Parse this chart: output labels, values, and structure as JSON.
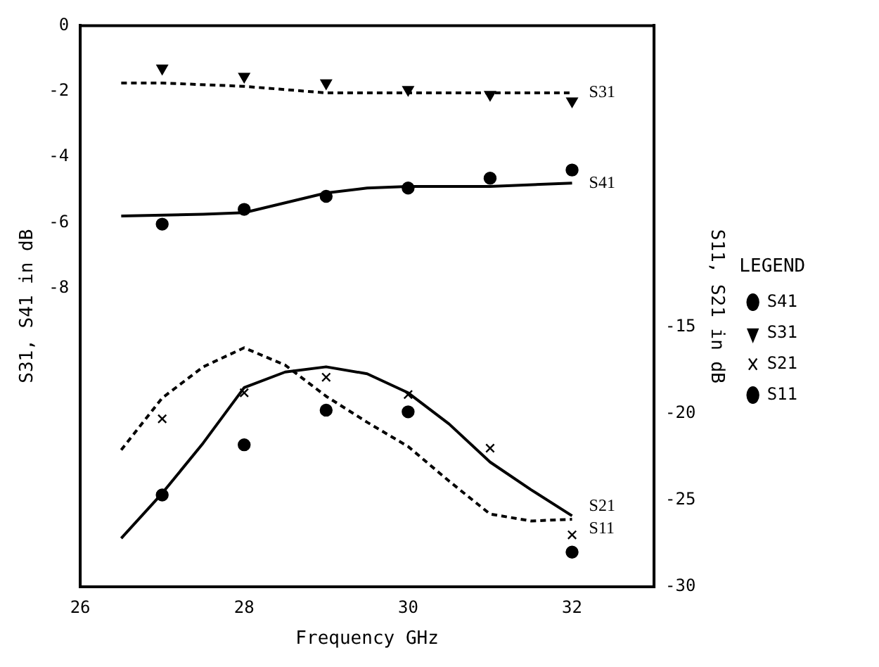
{
  "chart_data": {
    "type": "scatter",
    "xlabel": "Frequency GHz",
    "ylabel": "S31, S41 in dB",
    "y2label": "S11, S21 in dB",
    "legend_title": "LEGEND",
    "legend": "right",
    "grid": false,
    "xlim": [
      26,
      33
    ],
    "xticks": [
      26,
      28,
      30,
      32
    ],
    "ylim": [
      -17.1,
      0
    ],
    "yticks": [
      0,
      -2,
      -4,
      -6,
      -8
    ],
    "y2lim": [
      -30,
      2.4
    ],
    "y2ticks": [
      -15,
      -20,
      -25,
      -30
    ],
    "series": [
      {
        "name": "S41",
        "marker": "circle",
        "color": "#000000",
        "x": [
          27,
          28,
          29,
          30,
          31,
          32
        ],
        "values": [
          -6.05,
          -5.6,
          -5.2,
          -4.95,
          -4.65,
          -4.4
        ]
      },
      {
        "name": "S31",
        "marker": "triangle",
        "color": "#000000",
        "x": [
          27,
          28,
          29,
          30,
          31,
          32
        ],
        "values": [
          -1.3,
          -1.55,
          -1.75,
          -1.95,
          -2.1,
          -2.3
        ]
      },
      {
        "name": "S21",
        "marker": "cross",
        "color": "#000000",
        "axis": "y2",
        "x": [
          27,
          28,
          29,
          30,
          31,
          32
        ],
        "values": [
          -20.3,
          -18.8,
          -17.9,
          -18.9,
          -22.0,
          -27.0
        ]
      },
      {
        "name": "S11",
        "marker": "circle",
        "color": "#000000",
        "axis": "y2",
        "x": [
          27,
          28,
          29,
          30,
          31,
          32
        ],
        "values": [
          -24.7,
          -21.8,
          -19.8,
          -19.9,
          null,
          -28.0
        ]
      },
      {
        "name": "S31",
        "type": "line",
        "marker": "none",
        "line_style": "dashed",
        "color": "#000000",
        "x": [
          26.5,
          27,
          28,
          29,
          30,
          31,
          32
        ],
        "values": [
          -1.75,
          -1.75,
          -1.85,
          -2.05,
          -2.05,
          -2.05,
          -2.05
        ]
      },
      {
        "name": "S41",
        "type": "line",
        "marker": "none",
        "line_style": "solid",
        "color": "#000000",
        "x": [
          26.5,
          27.5,
          28,
          28.5,
          29,
          29.5,
          30,
          31,
          32
        ],
        "values": [
          -5.8,
          -5.75,
          -5.7,
          -5.4,
          -5.1,
          -4.95,
          -4.9,
          -4.9,
          -4.8
        ]
      },
      {
        "name": "S21",
        "type": "line",
        "marker": "none",
        "line_style": "solid",
        "color": "#000000",
        "axis": "y2",
        "x": [
          26.5,
          27,
          27.5,
          28,
          28.5,
          29,
          29.5,
          30,
          30.5,
          31,
          31.5,
          32
        ],
        "values": [
          -27.2,
          -24.6,
          -21.7,
          -18.5,
          -17.6,
          -17.3,
          -17.7,
          -18.8,
          -20.6,
          -22.8,
          -24.4,
          -25.9
        ]
      },
      {
        "name": "S11",
        "type": "line",
        "marker": "none",
        "line_style": "dashed",
        "color": "#000000",
        "axis": "y2",
        "x": [
          26.5,
          27,
          27.5,
          28,
          28.5,
          29,
          29.5,
          30,
          30.5,
          31,
          31.5,
          32
        ],
        "values": [
          -22.1,
          -19.1,
          -17.3,
          -16.2,
          -17.2,
          -19.0,
          -20.5,
          -21.9,
          -23.9,
          -25.8,
          -26.2,
          -26.1
        ]
      }
    ]
  }
}
